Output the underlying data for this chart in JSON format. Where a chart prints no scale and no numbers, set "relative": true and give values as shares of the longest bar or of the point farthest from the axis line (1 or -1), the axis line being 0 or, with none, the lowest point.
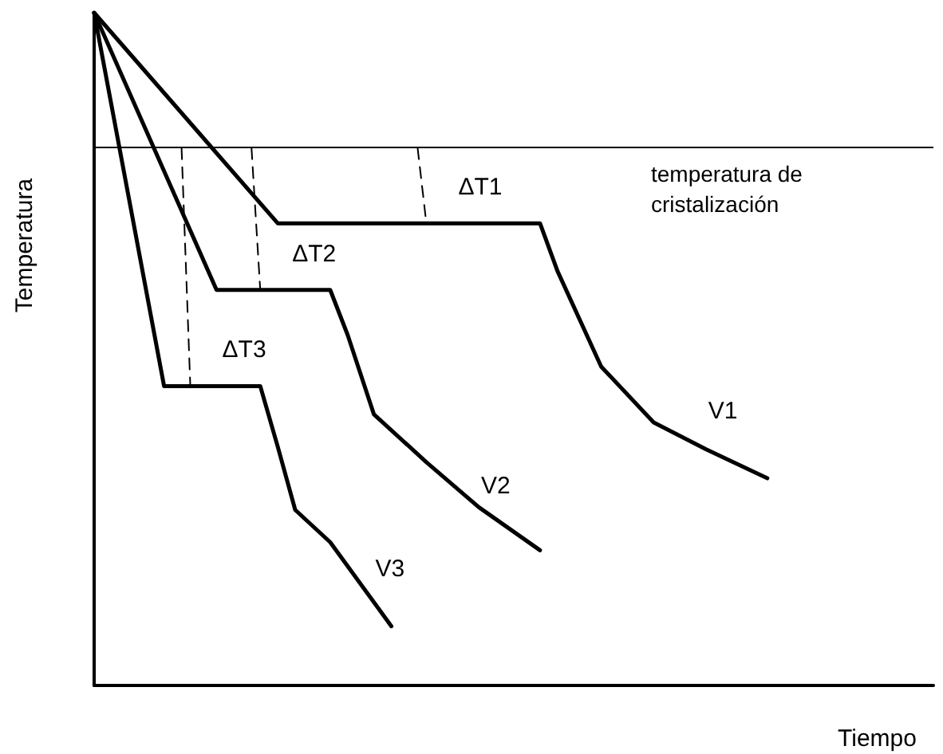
{
  "chart_data": {
    "type": "line",
    "relative": true,
    "xlabel": "Tiempo",
    "ylabel": "Temperatura",
    "line_style": "solid",
    "categories": [
      null,
      null,
      null,
      null,
      null,
      null,
      null,
      null,
      null,
      null,
      null,
      null,
      null,
      null,
      null,
      null,
      null,
      null,
      null,
      null,
      null,
      null,
      null,
      null,
      null,
      null,
      null,
      null,
      null,
      null,
      null,
      null,
      null,
      null,
      null,
      null,
      null,
      null,
      null,
      null,
      null,
      null,
      null,
      null,
      null,
      null,
      null,
      null,
      null,
      null,
      null,
      null,
      null,
      null,
      null,
      null,
      null,
      null,
      null,
      null,
      null,
      null,
      null,
      null,
      null,
      null,
      null,
      null,
      null,
      null,
      null,
      null,
      null,
      null,
      null,
      null,
      null,
      null,
      null,
      null,
      null,
      null,
      null,
      null,
      null,
      null,
      null,
      null,
      null,
      null,
      null,
      null,
      null,
      null,
      null,
      null,
      null
    ],
    "series": [
      {
        "name": "V1",
        "color": "#000000",
        "values": [
          1.0,
          null,
          null,
          null,
          null,
          null,
          null,
          null,
          null,
          null,
          null,
          null,
          null,
          null,
          null,
          null,
          null,
          null,
          null,
          null,
          null,
          0.687,
          null,
          null,
          null,
          null,
          null,
          null,
          null,
          null,
          null,
          null,
          null,
          null,
          null,
          null,
          null,
          null,
          null,
          null,
          null,
          null,
          null,
          null,
          null,
          null,
          null,
          null,
          null,
          null,
          null,
          0.687,
          null,
          0.616,
          null,
          null,
          null,
          null,
          0.474,
          null,
          null,
          null,
          null,
          null,
          0.391,
          null,
          null,
          null,
          null,
          null,
          0.351,
          null,
          null,
          null,
          null,
          null,
          null,
          0.308,
          null,
          null,
          null,
          null,
          null,
          null,
          null,
          null,
          null,
          null,
          null,
          null,
          null,
          null,
          null,
          null,
          null,
          null,
          null
        ]
      },
      {
        "name": "V2",
        "color": "#000000",
        "values": [
          1.0,
          null,
          null,
          null,
          null,
          null,
          null,
          null,
          null,
          null,
          null,
          null,
          null,
          null,
          0.588,
          null,
          null,
          null,
          null,
          null,
          null,
          null,
          null,
          null,
          null,
          null,
          null,
          0.588,
          null,
          0.521,
          null,
          null,
          0.403,
          null,
          null,
          null,
          null,
          null,
          0.332,
          null,
          null,
          null,
          null,
          null,
          0.265,
          null,
          null,
          null,
          null,
          null,
          null,
          0.201,
          null,
          null,
          null,
          null,
          null,
          null,
          null,
          null,
          null,
          null,
          null,
          null,
          null,
          null,
          null,
          null,
          null,
          null,
          null,
          null,
          null,
          null,
          null,
          null,
          null,
          null,
          null,
          null,
          null,
          null,
          null,
          null,
          null,
          null,
          null,
          null,
          null,
          null,
          null,
          null,
          null,
          null,
          null,
          null,
          null
        ]
      },
      {
        "name": "V3",
        "color": "#000000",
        "values": [
          1.0,
          null,
          null,
          null,
          null,
          null,
          null,
          null,
          0.445,
          null,
          null,
          null,
          null,
          null,
          null,
          null,
          null,
          null,
          null,
          0.445,
          null,
          0.355,
          null,
          0.261,
          null,
          null,
          null,
          0.213,
          null,
          null,
          null,
          null,
          null,
          null,
          0.088,
          null,
          null,
          null,
          null,
          null,
          null,
          null,
          null,
          null,
          null,
          null,
          null,
          null,
          null,
          null,
          null,
          null,
          null,
          null,
          null,
          null,
          null,
          null,
          null,
          null,
          null,
          null,
          null,
          null,
          null,
          null,
          null,
          null,
          null,
          null,
          null,
          null,
          null,
          null,
          null,
          null,
          null,
          null,
          null,
          null,
          null,
          null,
          null,
          null,
          null,
          null,
          null,
          null,
          null,
          null,
          null,
          null,
          null,
          null,
          null,
          null,
          null
        ]
      },
      {
        "color": "#000000",
        "line_style": "dashed",
        "values": [
          null,
          null,
          null,
          null,
          null,
          null,
          null,
          null,
          null,
          null,
          null,
          null,
          null,
          null,
          null,
          null,
          null,
          null,
          null,
          null,
          null,
          null,
          null,
          null,
          null,
          null,
          null,
          null,
          null,
          null,
          null,
          null,
          null,
          null,
          null,
          null,
          null,
          0.799,
          0.687,
          null,
          null,
          null,
          null,
          null,
          null,
          null,
          null,
          null,
          null,
          null,
          null,
          null,
          null,
          null,
          null,
          null,
          null,
          null,
          null,
          null,
          null,
          null,
          null,
          null,
          null,
          null,
          null,
          null,
          null,
          null,
          null,
          null,
          null,
          null,
          null,
          null,
          null,
          null,
          null,
          null,
          null,
          null,
          null,
          null,
          null,
          null,
          null,
          null,
          null,
          null,
          null,
          null,
          null,
          null,
          null,
          null,
          null
        ]
      },
      {
        "color": "#000000",
        "line_style": "dashed",
        "values": [
          null,
          null,
          null,
          null,
          null,
          null,
          null,
          null,
          null,
          null,
          null,
          null,
          null,
          null,
          null,
          null,
          null,
          null,
          0.799,
          0.588,
          null,
          null,
          null,
          null,
          null,
          null,
          null,
          null,
          null,
          null,
          null,
          null,
          null,
          null,
          null,
          null,
          null,
          null,
          null,
          null,
          null,
          null,
          null,
          null,
          null,
          null,
          null,
          null,
          null,
          null,
          null,
          null,
          null,
          null,
          null,
          null,
          null,
          null,
          null,
          null,
          null,
          null,
          null,
          null,
          null,
          null,
          null,
          null,
          null,
          null,
          null,
          null,
          null,
          null,
          null,
          null,
          null,
          null,
          null,
          null,
          null,
          null,
          null,
          null,
          null,
          null,
          null,
          null,
          null,
          null,
          null,
          null,
          null,
          null,
          null,
          null,
          null
        ]
      },
      {
        "color": "#000000",
        "line_style": "dashed",
        "values": [
          null,
          null,
          null,
          null,
          null,
          null,
          null,
          null,
          null,
          null,
          0.799,
          0.445,
          null,
          null,
          null,
          null,
          null,
          null,
          null,
          null,
          null,
          null,
          null,
          null,
          null,
          null,
          null,
          null,
          null,
          null,
          null,
          null,
          null,
          null,
          null,
          null,
          null,
          null,
          null,
          null,
          null,
          null,
          null,
          null,
          null,
          null,
          null,
          null,
          null,
          null,
          null,
          null,
          null,
          null,
          null,
          null,
          null,
          null,
          null,
          null,
          null,
          null,
          null,
          null,
          null,
          null,
          null,
          null,
          null,
          null,
          null,
          null,
          null,
          null,
          null,
          null,
          null,
          null,
          null,
          null,
          null,
          null,
          null,
          null,
          null,
          null,
          null,
          null,
          null,
          null,
          null,
          null,
          null,
          null,
          null,
          null,
          null
        ]
      }
    ],
    "ref_lines": [
      {
        "axis": "y",
        "value": 0.799,
        "label": "temperatura de cristalización",
        "color": "#000000"
      }
    ],
    "annotations": [
      "ΔT1",
      "ΔT2",
      "ΔT3"
    ]
  }
}
